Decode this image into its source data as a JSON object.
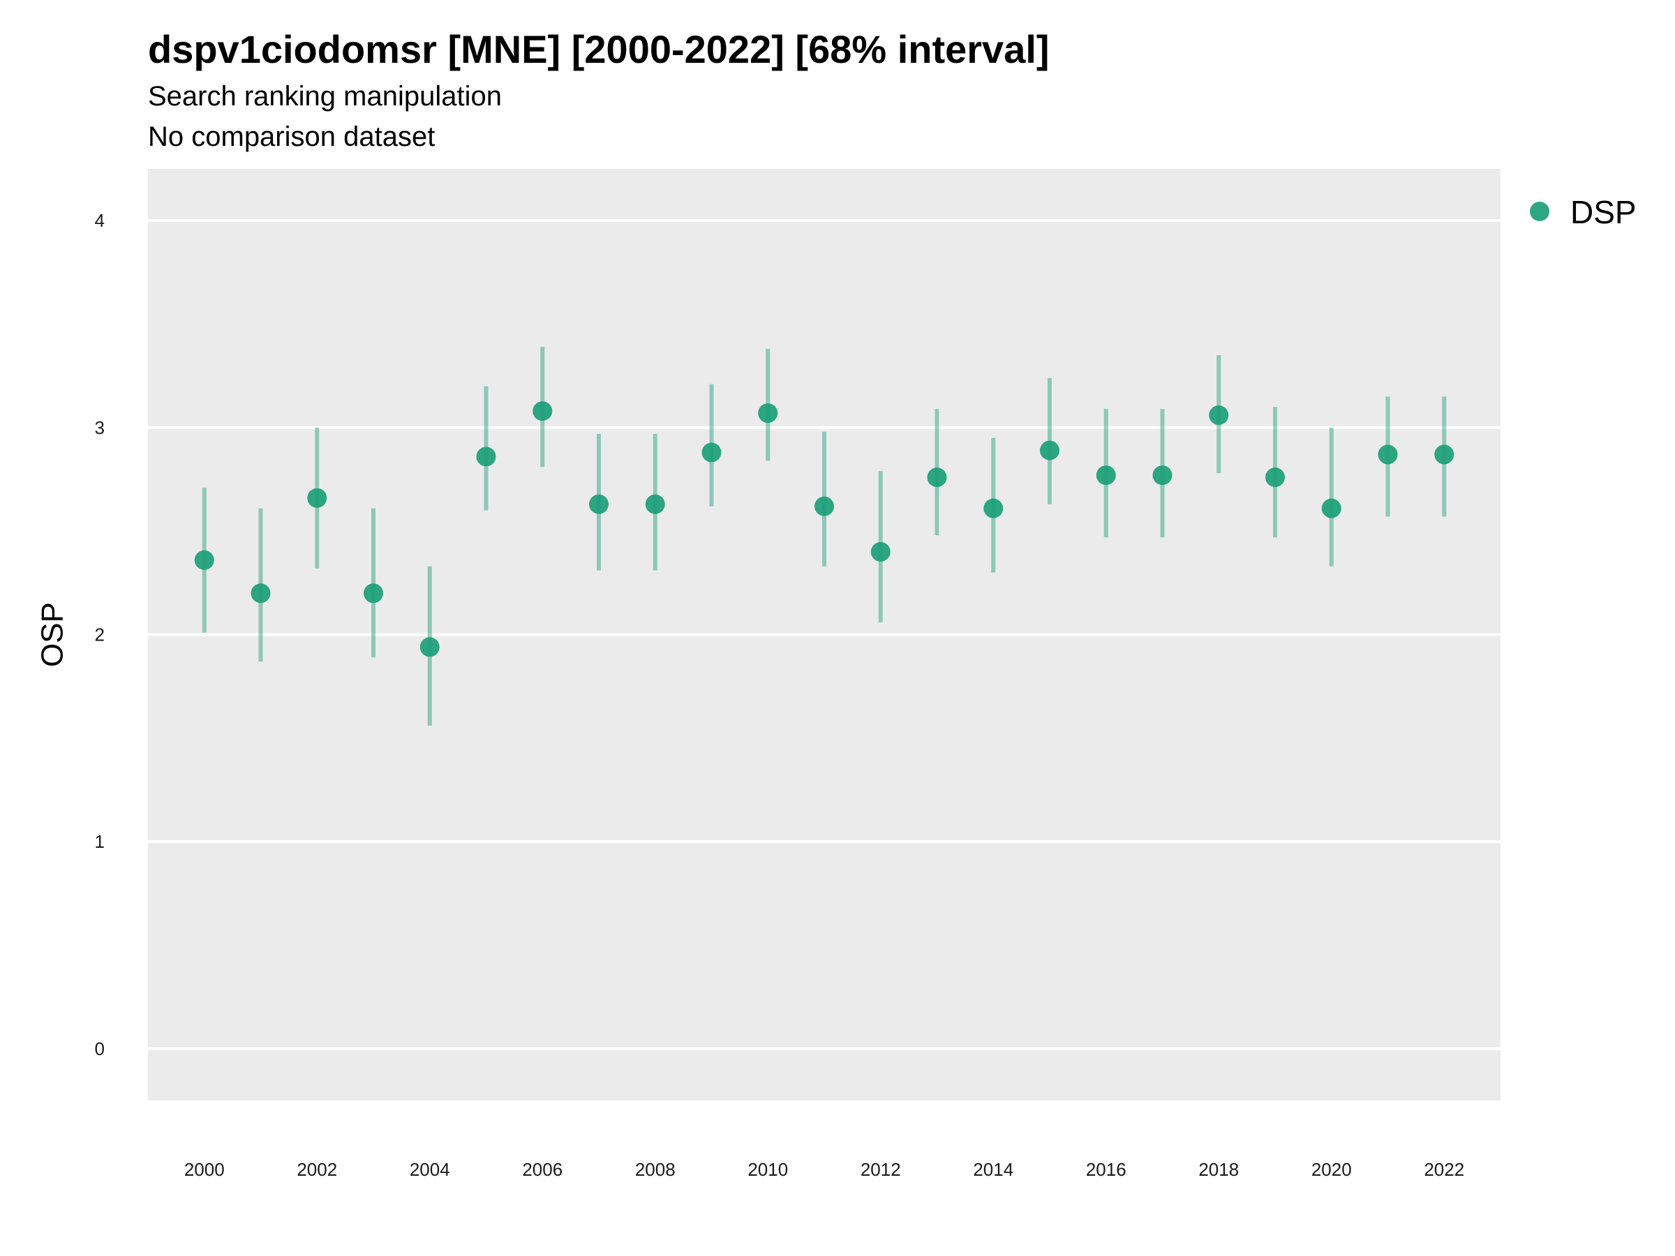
{
  "chart_data": {
    "type": "scatter",
    "title": "dspv1ciodomsr [MNE] [2000-2022] [68% interval]",
    "subtitle": "Search ranking manipulation",
    "caption": "No comparison dataset",
    "xlabel": "",
    "ylabel": "OSP",
    "xlim": [
      1999.0,
      2023.0
    ],
    "ylim": [
      -0.25,
      4.25
    ],
    "x_ticks": [
      "2000",
      "2002",
      "2004",
      "2006",
      "2008",
      "2010",
      "2012",
      "2014",
      "2016",
      "2018",
      "2020",
      "2022"
    ],
    "y_ticks": [
      "0",
      "1",
      "2",
      "3",
      "4"
    ],
    "grid": true,
    "legend_position": "right",
    "series": [
      {
        "name": "DSP",
        "color": "#1b9e77",
        "x": [
          2000,
          2001,
          2002,
          2003,
          2004,
          2005,
          2006,
          2007,
          2008,
          2009,
          2010,
          2011,
          2012,
          2013,
          2014,
          2015,
          2016,
          2017,
          2018,
          2019,
          2020,
          2021,
          2022
        ],
        "y": [
          2.36,
          2.2,
          2.66,
          2.2,
          1.94,
          2.86,
          3.08,
          2.63,
          2.63,
          2.88,
          3.07,
          2.62,
          2.4,
          2.76,
          2.61,
          2.89,
          2.77,
          2.77,
          3.06,
          2.76,
          2.61,
          2.87,
          2.87
        ],
        "lower": [
          2.01,
          1.87,
          2.32,
          1.89,
          1.56,
          2.6,
          2.81,
          2.31,
          2.31,
          2.62,
          2.84,
          2.33,
          2.06,
          2.48,
          2.3,
          2.63,
          2.47,
          2.47,
          2.78,
          2.47,
          2.33,
          2.57,
          2.57
        ],
        "upper": [
          2.71,
          2.61,
          3.0,
          2.61,
          2.33,
          3.2,
          3.39,
          2.97,
          2.97,
          3.21,
          3.38,
          2.98,
          2.79,
          3.09,
          2.95,
          3.24,
          3.09,
          3.09,
          3.35,
          3.1,
          3.0,
          3.15,
          3.15
        ]
      }
    ]
  }
}
